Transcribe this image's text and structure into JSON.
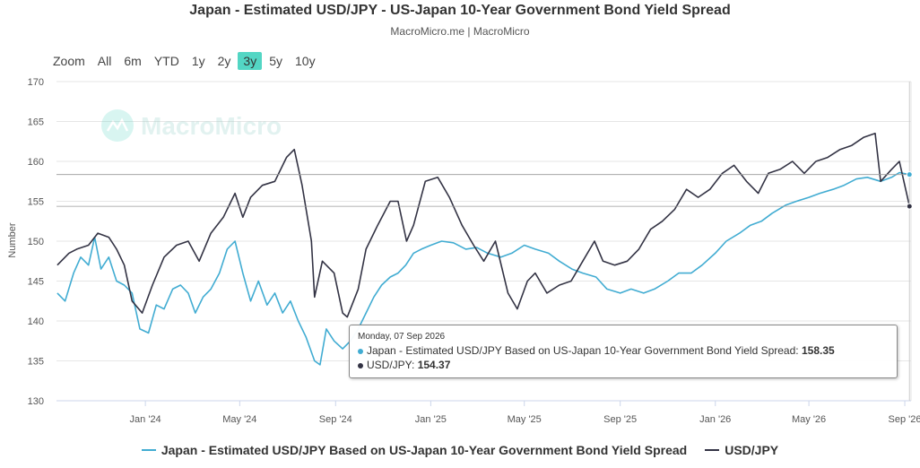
{
  "header": {
    "title": "Japan - Estimated USD/JPY - US-Japan 10-Year Government Bond Yield Spread",
    "subtitle": "MacroMicro.me | MacroMicro"
  },
  "zoom": {
    "label": "Zoom",
    "buttons": [
      "All",
      "6m",
      "YTD",
      "1y",
      "2y",
      "3y",
      "5y",
      "10y"
    ],
    "selected": "3y"
  },
  "watermark": {
    "text": "MacroMicro"
  },
  "colors": {
    "spread": "#41acd2",
    "usdjpy": "#333344",
    "zoom_selected": "#53d6c4"
  },
  "tooltip": {
    "date": "Monday, 07 Sep 2026",
    "rows": [
      {
        "label": "Japan - Estimated USD/JPY Based on US-Japan 10-Year Government Bond Yield Spread:",
        "value": "158.35"
      },
      {
        "label": "USD/JPY:",
        "value": "154.37"
      }
    ]
  },
  "legend": [
    "Japan - Estimated USD/JPY Based on US-Japan 10-Year Government Bond Yield Spread",
    "USD/JPY"
  ],
  "chart_data": {
    "type": "line",
    "title": "Japan - Estimated USD/JPY - US-Japan 10-Year Government Bond Yield Spread",
    "ylabel": "Number",
    "ylim": [
      130,
      170
    ],
    "yticks": [
      130,
      135,
      140,
      145,
      150,
      155,
      160,
      165,
      170
    ],
    "xlim": [
      "2023-09-09",
      "2026-09-09"
    ],
    "xticks": [
      {
        "date": "2024-01-01",
        "label": "Jan '24"
      },
      {
        "date": "2024-05-01",
        "label": "May '24"
      },
      {
        "date": "2024-09-01",
        "label": "Sep '24"
      },
      {
        "date": "2025-01-01",
        "label": "Jan '25"
      },
      {
        "date": "2025-05-01",
        "label": "May '25"
      },
      {
        "date": "2025-09-01",
        "label": "Sep '25"
      },
      {
        "date": "2026-01-01",
        "label": "Jan '26"
      },
      {
        "date": "2026-05-01",
        "label": "May '26"
      },
      {
        "date": "2026-09-01",
        "label": "Sep '26"
      }
    ],
    "grid": true,
    "legend_position": "bottom",
    "series": [
      {
        "name": "Japan - Estimated USD/JPY Based on US-Japan 10-Year Government Bond Yield Spread",
        "color": "#41acd2",
        "points": [
          [
            "2023-09-10",
            143.5
          ],
          [
            "2023-09-20",
            142.5
          ],
          [
            "2023-10-01",
            146
          ],
          [
            "2023-10-10",
            148
          ],
          [
            "2023-10-20",
            147
          ],
          [
            "2023-10-28",
            150.5
          ],
          [
            "2023-11-05",
            146.5
          ],
          [
            "2023-11-15",
            148
          ],
          [
            "2023-11-25",
            145
          ],
          [
            "2023-12-05",
            144.5
          ],
          [
            "2023-12-15",
            143.5
          ],
          [
            "2023-12-25",
            139
          ],
          [
            "2024-01-05",
            138.5
          ],
          [
            "2024-01-15",
            142
          ],
          [
            "2024-01-25",
            141.5
          ],
          [
            "2024-02-05",
            144
          ],
          [
            "2024-02-15",
            144.5
          ],
          [
            "2024-02-25",
            143.5
          ],
          [
            "2024-03-05",
            141
          ],
          [
            "2024-03-15",
            143
          ],
          [
            "2024-03-25",
            144
          ],
          [
            "2024-04-05",
            146
          ],
          [
            "2024-04-15",
            149
          ],
          [
            "2024-04-25",
            150
          ],
          [
            "2024-05-05",
            146
          ],
          [
            "2024-05-15",
            142.5
          ],
          [
            "2024-05-25",
            145
          ],
          [
            "2024-06-05",
            142
          ],
          [
            "2024-06-15",
            143.5
          ],
          [
            "2024-06-25",
            141
          ],
          [
            "2024-07-05",
            142.5
          ],
          [
            "2024-07-15",
            140
          ],
          [
            "2024-07-25",
            138
          ],
          [
            "2024-08-05",
            135
          ],
          [
            "2024-08-12",
            134.5
          ],
          [
            "2024-08-20",
            139
          ],
          [
            "2024-08-30",
            137.5
          ],
          [
            "2024-09-10",
            136.5
          ],
          [
            "2024-09-20",
            137.5
          ],
          [
            "2024-09-30",
            139
          ],
          [
            "2024-10-10",
            141
          ],
          [
            "2024-10-20",
            143
          ],
          [
            "2024-10-30",
            144.5
          ],
          [
            "2024-11-10",
            145.5
          ],
          [
            "2024-11-20",
            146
          ],
          [
            "2024-11-30",
            147
          ],
          [
            "2024-12-10",
            148.5
          ],
          [
            "2024-12-20",
            149
          ],
          [
            "2025-01-01",
            149.5
          ],
          [
            "2025-01-15",
            150
          ],
          [
            "2025-01-30",
            149.8
          ],
          [
            "2025-02-15",
            149
          ],
          [
            "2025-03-01",
            149.2
          ],
          [
            "2025-03-15",
            148.5
          ],
          [
            "2025-04-01",
            148
          ],
          [
            "2025-04-15",
            148.5
          ],
          [
            "2025-05-01",
            149.5
          ],
          [
            "2025-05-15",
            149
          ],
          [
            "2025-06-01",
            148.5
          ],
          [
            "2025-06-15",
            147.5
          ],
          [
            "2025-07-01",
            146.5
          ],
          [
            "2025-07-15",
            146
          ],
          [
            "2025-08-01",
            145.5
          ],
          [
            "2025-08-15",
            144
          ],
          [
            "2025-09-01",
            143.5
          ],
          [
            "2025-09-15",
            144
          ],
          [
            "2025-10-01",
            143.5
          ],
          [
            "2025-10-15",
            144
          ],
          [
            "2025-11-01",
            145
          ],
          [
            "2025-11-15",
            146
          ],
          [
            "2025-12-01",
            146
          ],
          [
            "2025-12-15",
            147
          ],
          [
            "2026-01-01",
            148.5
          ],
          [
            "2026-01-15",
            150
          ],
          [
            "2026-02-01",
            151
          ],
          [
            "2026-02-15",
            152
          ],
          [
            "2026-03-01",
            152.5
          ],
          [
            "2026-03-15",
            153.5
          ],
          [
            "2026-04-01",
            154.5
          ],
          [
            "2026-04-15",
            155
          ],
          [
            "2026-05-01",
            155.5
          ],
          [
            "2026-05-15",
            156
          ],
          [
            "2026-06-01",
            156.5
          ],
          [
            "2026-06-15",
            157
          ],
          [
            "2026-07-01",
            157.8
          ],
          [
            "2026-07-15",
            158
          ],
          [
            "2026-08-01",
            157.5
          ],
          [
            "2026-08-15",
            158
          ],
          [
            "2026-08-25",
            158.6
          ],
          [
            "2026-09-07",
            158.35
          ]
        ]
      },
      {
        "name": "USD/JPY",
        "color": "#333344",
        "points": [
          [
            "2023-09-10",
            147
          ],
          [
            "2023-09-25",
            148.5
          ],
          [
            "2023-10-05",
            149
          ],
          [
            "2023-10-20",
            149.5
          ],
          [
            "2023-11-01",
            151
          ],
          [
            "2023-11-15",
            150.5
          ],
          [
            "2023-11-25",
            149
          ],
          [
            "2023-12-05",
            147
          ],
          [
            "2023-12-15",
            142.5
          ],
          [
            "2023-12-28",
            141
          ],
          [
            "2024-01-10",
            144.5
          ],
          [
            "2024-01-25",
            148
          ],
          [
            "2024-02-10",
            149.5
          ],
          [
            "2024-02-25",
            150
          ],
          [
            "2024-03-10",
            147.5
          ],
          [
            "2024-03-25",
            151
          ],
          [
            "2024-04-10",
            153
          ],
          [
            "2024-04-25",
            156
          ],
          [
            "2024-05-05",
            153
          ],
          [
            "2024-05-15",
            155.5
          ],
          [
            "2024-05-30",
            157
          ],
          [
            "2024-06-15",
            157.5
          ],
          [
            "2024-06-30",
            160.5
          ],
          [
            "2024-07-10",
            161.5
          ],
          [
            "2024-07-20",
            157
          ],
          [
            "2024-08-01",
            150
          ],
          [
            "2024-08-05",
            143
          ],
          [
            "2024-08-15",
            147.5
          ],
          [
            "2024-08-30",
            146
          ],
          [
            "2024-09-10",
            141
          ],
          [
            "2024-09-16",
            140.5
          ],
          [
            "2024-09-30",
            144
          ],
          [
            "2024-10-10",
            149
          ],
          [
            "2024-10-25",
            152
          ],
          [
            "2024-11-10",
            155
          ],
          [
            "2024-11-20",
            155
          ],
          [
            "2024-12-01",
            150
          ],
          [
            "2024-12-10",
            152
          ],
          [
            "2024-12-25",
            157.5
          ],
          [
            "2025-01-10",
            158
          ],
          [
            "2025-01-25",
            155.5
          ],
          [
            "2025-02-10",
            152
          ],
          [
            "2025-02-25",
            149.5
          ],
          [
            "2025-03-10",
            147.5
          ],
          [
            "2025-03-25",
            150
          ],
          [
            "2025-04-10",
            143.5
          ],
          [
            "2025-04-22",
            141.5
          ],
          [
            "2025-05-05",
            145
          ],
          [
            "2025-05-15",
            146
          ],
          [
            "2025-05-30",
            143.5
          ],
          [
            "2025-06-15",
            144.5
          ],
          [
            "2025-06-30",
            145
          ],
          [
            "2025-07-15",
            147.5
          ],
          [
            "2025-07-30",
            150
          ],
          [
            "2025-08-10",
            147.5
          ],
          [
            "2025-08-25",
            147
          ],
          [
            "2025-09-10",
            147.5
          ],
          [
            "2025-09-25",
            149
          ],
          [
            "2025-10-10",
            151.5
          ],
          [
            "2025-10-25",
            152.5
          ],
          [
            "2025-11-10",
            154
          ],
          [
            "2025-11-25",
            156.5
          ],
          [
            "2025-12-10",
            155.5
          ],
          [
            "2025-12-25",
            156.5
          ],
          [
            "2026-01-10",
            158.5
          ],
          [
            "2026-01-25",
            159.5
          ],
          [
            "2026-02-10",
            157.5
          ],
          [
            "2026-02-25",
            156
          ],
          [
            "2026-03-10",
            158.5
          ],
          [
            "2026-03-25",
            159
          ],
          [
            "2026-04-10",
            160
          ],
          [
            "2026-04-25",
            158.5
          ],
          [
            "2026-05-10",
            160
          ],
          [
            "2026-05-25",
            160.5
          ],
          [
            "2026-06-10",
            161.5
          ],
          [
            "2026-06-25",
            162
          ],
          [
            "2026-07-10",
            163
          ],
          [
            "2026-07-25",
            163.5
          ],
          [
            "2026-08-01",
            157.5
          ],
          [
            "2026-08-15",
            159
          ],
          [
            "2026-08-25",
            160
          ],
          [
            "2026-09-01",
            157
          ],
          [
            "2026-09-07",
            154.37
          ]
        ]
      }
    ]
  }
}
